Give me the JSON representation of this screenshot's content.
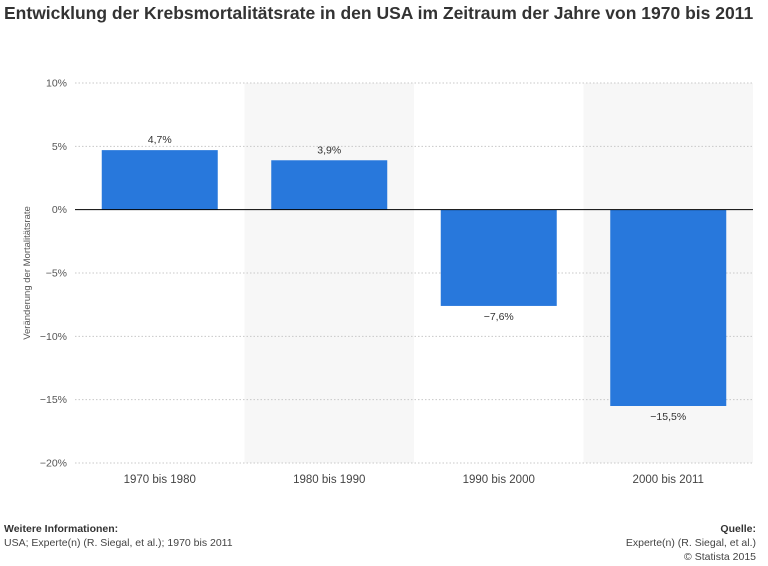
{
  "title": "Entwicklung der Krebsmortalitätsrate in den USA im Zeitraum der Jahre von 1970 bis 2011",
  "footer": {
    "info_heading": "Weitere Informationen:",
    "info_text": "USA; Experte(n) (R. Siegal, et al.); 1970 bis 2011",
    "source_heading": "Quelle:",
    "source_text": "Experte(n) (R. Siegal, et al.)",
    "copyright": "© Statista 2015"
  },
  "colors": {
    "bar": "#2878dc",
    "band": "#f7f7f7",
    "grid": "#c8c8c8",
    "zero_line": "#000000"
  },
  "chart_data": {
    "type": "bar",
    "title": "Entwicklung der Krebsmortalitätsrate in den USA im Zeitraum der Jahre von 1970 bis 2011",
    "ylabel": "Veränderung der Mortalitätsrate",
    "xlabel": "",
    "categories": [
      "1970 bis 1980",
      "1980 bis 1990",
      "1990 bis 2000",
      "2000 bis 2011"
    ],
    "values": [
      4.7,
      3.9,
      -7.6,
      -15.5
    ],
    "value_labels": [
      "4,7%",
      "3,9%",
      "−7,6%",
      "−15,5%"
    ],
    "ylim": [
      -20,
      10
    ],
    "yticks": [
      10,
      5,
      0,
      -5,
      -10,
      -15,
      -20
    ],
    "ytick_labels": [
      "10%",
      "5%",
      "0%",
      "−5%",
      "−10%",
      "−15%",
      "−20%"
    ],
    "grid": true
  }
}
